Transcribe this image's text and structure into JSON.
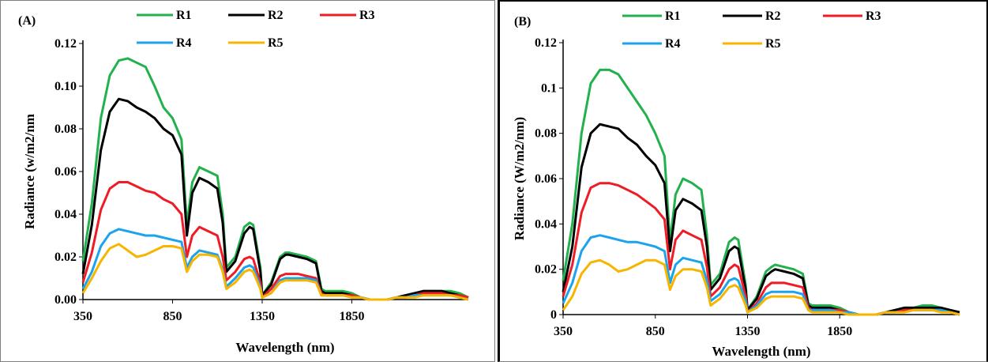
{
  "colors": {
    "R1": "#22b14c",
    "R2": "#000000",
    "R3": "#ee1c25",
    "R4": "#1ca3ec",
    "R5": "#f7b500"
  },
  "chart_data": [
    {
      "type": "line",
      "panel_label": "(A)",
      "xlabel": "Wavelength (nm)",
      "ylabel": "Radiance (w/m2/nm",
      "xlim": [
        350,
        2500
      ],
      "ylim": [
        0,
        0.12
      ],
      "xticks": [
        350,
        850,
        1350,
        1850
      ],
      "xtick_labels": [
        "350",
        "850",
        "1350",
        "1850"
      ],
      "yticks": [
        0,
        0.02,
        0.04,
        0.06,
        0.08,
        0.1,
        0.12
      ],
      "ytick_labels": [
        "0.00",
        "0.02",
        "0.04",
        "0.06",
        "0.08",
        "0.10",
        "0.12"
      ],
      "grid": false,
      "legend": "top",
      "x": [
        350,
        400,
        450,
        500,
        550,
        600,
        650,
        700,
        750,
        800,
        850,
        900,
        930,
        960,
        1000,
        1050,
        1100,
        1130,
        1150,
        1200,
        1250,
        1280,
        1300,
        1340,
        1350,
        1400,
        1450,
        1480,
        1500,
        1550,
        1600,
        1650,
        1680,
        1700,
        1750,
        1800,
        1850,
        1900,
        1950,
        2000,
        2050,
        2100,
        2150,
        2200,
        2250,
        2300,
        2350,
        2400,
        2450,
        2500
      ],
      "series": [
        {
          "name": "R1",
          "values": [
            0.018,
            0.045,
            0.085,
            0.105,
            0.112,
            0.113,
            0.111,
            0.109,
            0.1,
            0.09,
            0.085,
            0.075,
            0.035,
            0.055,
            0.062,
            0.06,
            0.058,
            0.04,
            0.015,
            0.02,
            0.034,
            0.036,
            0.035,
            0.015,
            0.002,
            0.008,
            0.02,
            0.022,
            0.022,
            0.021,
            0.02,
            0.018,
            0.005,
            0.004,
            0.004,
            0.004,
            0.003,
            0.001,
            0.0,
            0.0,
            0.0,
            0.001,
            0.002,
            0.003,
            0.004,
            0.004,
            0.004,
            0.004,
            0.003,
            0.001
          ]
        },
        {
          "name": "R2",
          "values": [
            0.012,
            0.035,
            0.07,
            0.088,
            0.094,
            0.093,
            0.09,
            0.088,
            0.085,
            0.08,
            0.077,
            0.068,
            0.03,
            0.05,
            0.057,
            0.055,
            0.052,
            0.036,
            0.013,
            0.018,
            0.031,
            0.034,
            0.033,
            0.013,
            0.002,
            0.007,
            0.019,
            0.021,
            0.021,
            0.02,
            0.019,
            0.017,
            0.004,
            0.003,
            0.003,
            0.003,
            0.002,
            0.001,
            0.0,
            0.0,
            0.0,
            0.001,
            0.002,
            0.003,
            0.004,
            0.004,
            0.004,
            0.003,
            0.002,
            0.001
          ]
        },
        {
          "name": "R3",
          "values": [
            0.008,
            0.022,
            0.042,
            0.052,
            0.055,
            0.055,
            0.053,
            0.051,
            0.05,
            0.047,
            0.045,
            0.04,
            0.02,
            0.03,
            0.034,
            0.032,
            0.03,
            0.02,
            0.009,
            0.013,
            0.019,
            0.02,
            0.019,
            0.008,
            0.001,
            0.005,
            0.011,
            0.012,
            0.012,
            0.012,
            0.011,
            0.01,
            0.003,
            0.002,
            0.002,
            0.002,
            0.002,
            0.001,
            0.0,
            0.0,
            0.0,
            0.001,
            0.001,
            0.002,
            0.003,
            0.003,
            0.003,
            0.002,
            0.002,
            0.001
          ]
        },
        {
          "name": "R4",
          "values": [
            0.005,
            0.013,
            0.025,
            0.031,
            0.033,
            0.032,
            0.031,
            0.03,
            0.03,
            0.029,
            0.028,
            0.027,
            0.015,
            0.02,
            0.023,
            0.022,
            0.021,
            0.014,
            0.006,
            0.01,
            0.015,
            0.016,
            0.015,
            0.006,
            0.001,
            0.003,
            0.009,
            0.01,
            0.01,
            0.01,
            0.01,
            0.009,
            0.002,
            0.002,
            0.002,
            0.002,
            0.001,
            0.001,
            0.0,
            0.0,
            0.0,
            0.001,
            0.001,
            0.002,
            0.002,
            0.002,
            0.002,
            0.002,
            0.001,
            0.0
          ]
        },
        {
          "name": "R5",
          "values": [
            0.003,
            0.01,
            0.018,
            0.024,
            0.026,
            0.023,
            0.02,
            0.021,
            0.023,
            0.025,
            0.025,
            0.024,
            0.013,
            0.018,
            0.021,
            0.021,
            0.02,
            0.013,
            0.005,
            0.008,
            0.013,
            0.014,
            0.013,
            0.005,
            0.001,
            0.003,
            0.008,
            0.009,
            0.009,
            0.009,
            0.009,
            0.008,
            0.002,
            0.002,
            0.002,
            0.002,
            0.001,
            0.001,
            0.0,
            0.0,
            0.0,
            0.001,
            0.001,
            0.001,
            0.002,
            0.002,
            0.002,
            0.002,
            0.001,
            0.0
          ]
        }
      ]
    },
    {
      "type": "line",
      "panel_label": "(B)",
      "xlabel": "Wavelength (nm)",
      "ylabel": "Radiance (W/m2/nm)",
      "xlim": [
        350,
        2500
      ],
      "ylim": [
        0,
        0.12
      ],
      "xticks": [
        350,
        850,
        1350,
        1850
      ],
      "xtick_labels": [
        "350",
        "850",
        "1350",
        "1850"
      ],
      "yticks": [
        0,
        0.02,
        0.04,
        0.06,
        0.08,
        0.1,
        0.12
      ],
      "ytick_labels": [
        "0",
        "0.02",
        "0.04",
        "0.06",
        "0.08",
        "0.1",
        "0.12"
      ],
      "grid": false,
      "legend": "top",
      "x": [
        350,
        400,
        450,
        500,
        550,
        600,
        650,
        700,
        750,
        800,
        850,
        900,
        930,
        960,
        1000,
        1050,
        1100,
        1130,
        1150,
        1200,
        1250,
        1280,
        1300,
        1340,
        1350,
        1400,
        1450,
        1480,
        1500,
        1550,
        1600,
        1650,
        1680,
        1700,
        1750,
        1800,
        1850,
        1900,
        1950,
        2000,
        2050,
        2100,
        2150,
        2200,
        2250,
        2300,
        2350,
        2400,
        2450,
        2500
      ],
      "series": [
        {
          "name": "R1",
          "values": [
            0.015,
            0.04,
            0.08,
            0.102,
            0.108,
            0.108,
            0.106,
            0.1,
            0.094,
            0.088,
            0.08,
            0.07,
            0.032,
            0.053,
            0.06,
            0.058,
            0.055,
            0.035,
            0.013,
            0.018,
            0.032,
            0.034,
            0.033,
            0.013,
            0.002,
            0.008,
            0.019,
            0.021,
            0.022,
            0.021,
            0.02,
            0.018,
            0.005,
            0.004,
            0.004,
            0.004,
            0.003,
            0.001,
            0.0,
            0.0,
            0.0,
            0.001,
            0.002,
            0.003,
            0.003,
            0.004,
            0.004,
            0.003,
            0.002,
            0.001
          ]
        },
        {
          "name": "R2",
          "values": [
            0.01,
            0.03,
            0.065,
            0.08,
            0.084,
            0.083,
            0.082,
            0.078,
            0.075,
            0.07,
            0.066,
            0.058,
            0.028,
            0.046,
            0.051,
            0.049,
            0.046,
            0.03,
            0.011,
            0.016,
            0.028,
            0.03,
            0.029,
            0.011,
            0.002,
            0.007,
            0.017,
            0.019,
            0.02,
            0.019,
            0.018,
            0.016,
            0.004,
            0.003,
            0.003,
            0.003,
            0.002,
            0.001,
            0.0,
            0.0,
            0.0,
            0.001,
            0.002,
            0.003,
            0.003,
            0.003,
            0.003,
            0.003,
            0.002,
            0.001
          ]
        },
        {
          "name": "R3",
          "values": [
            0.008,
            0.022,
            0.045,
            0.056,
            0.058,
            0.058,
            0.057,
            0.055,
            0.053,
            0.05,
            0.047,
            0.042,
            0.02,
            0.033,
            0.037,
            0.035,
            0.033,
            0.021,
            0.008,
            0.012,
            0.02,
            0.022,
            0.021,
            0.008,
            0.001,
            0.005,
            0.012,
            0.014,
            0.014,
            0.014,
            0.013,
            0.012,
            0.003,
            0.002,
            0.002,
            0.002,
            0.002,
            0.001,
            0.0,
            0.0,
            0.0,
            0.001,
            0.001,
            0.002,
            0.002,
            0.002,
            0.002,
            0.002,
            0.001,
            0.0
          ]
        },
        {
          "name": "R4",
          "values": [
            0.005,
            0.014,
            0.028,
            0.034,
            0.035,
            0.034,
            0.033,
            0.032,
            0.032,
            0.031,
            0.03,
            0.028,
            0.014,
            0.022,
            0.025,
            0.024,
            0.023,
            0.015,
            0.006,
            0.009,
            0.015,
            0.016,
            0.015,
            0.006,
            0.001,
            0.004,
            0.009,
            0.01,
            0.01,
            0.01,
            0.01,
            0.009,
            0.002,
            0.002,
            0.002,
            0.002,
            0.001,
            0.001,
            0.0,
            0.0,
            0.0,
            0.001,
            0.001,
            0.001,
            0.002,
            0.002,
            0.002,
            0.002,
            0.001,
            0.0
          ]
        },
        {
          "name": "R5",
          "values": [
            0.002,
            0.008,
            0.018,
            0.023,
            0.024,
            0.022,
            0.019,
            0.02,
            0.022,
            0.024,
            0.024,
            0.022,
            0.011,
            0.017,
            0.02,
            0.02,
            0.019,
            0.012,
            0.004,
            0.007,
            0.012,
            0.013,
            0.012,
            0.004,
            0.001,
            0.003,
            0.007,
            0.008,
            0.008,
            0.008,
            0.008,
            0.007,
            0.002,
            0.001,
            0.001,
            0.001,
            0.001,
            0.0,
            0.0,
            0.0,
            0.0,
            0.001,
            0.001,
            0.001,
            0.002,
            0.002,
            0.002,
            0.001,
            0.001,
            0.0
          ]
        }
      ]
    }
  ]
}
